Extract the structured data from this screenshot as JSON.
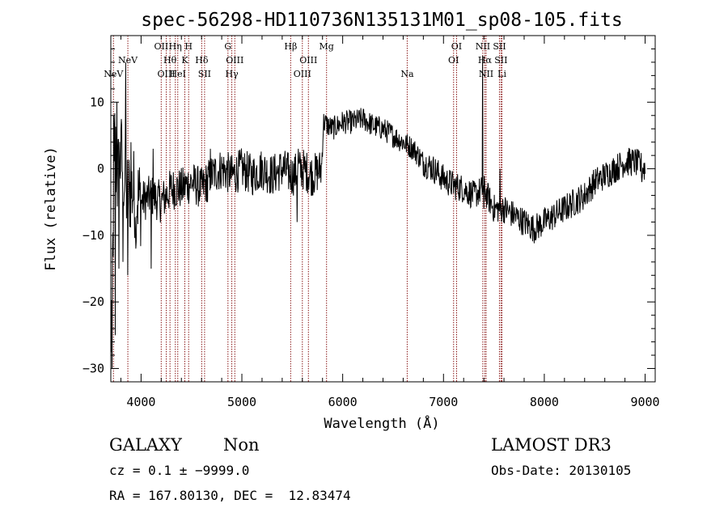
{
  "chart_data": {
    "type": "line",
    "title": "spec-56298-HD110736N135131M01_sp08-105.fits",
    "xlabel": "Wavelength (Å)",
    "ylabel": "Flux (relative)",
    "xlim": [
      3700,
      9100
    ],
    "ylim": [
      -32,
      20
    ],
    "xticks": [
      4000,
      5000,
      6000,
      7000,
      8000,
      9000
    ],
    "yticks": [
      10,
      0,
      -10,
      -20,
      -30
    ],
    "grid": false,
    "line_color": "#000000",
    "marker_color": "#8b1a1a",
    "spectrum_anchors": [
      {
        "x": 3700,
        "y": -28
      },
      {
        "x": 3720,
        "y": -12
      },
      {
        "x": 3740,
        "y": 5
      },
      {
        "x": 3760,
        "y": -2
      },
      {
        "x": 3800,
        "y": 2
      },
      {
        "x": 3860,
        "y": -4
      },
      {
        "x": 3900,
        "y": -3
      },
      {
        "x": 4000,
        "y": -5
      },
      {
        "x": 4100,
        "y": -4
      },
      {
        "x": 4200,
        "y": -5
      },
      {
        "x": 4300,
        "y": -3
      },
      {
        "x": 4400,
        "y": -3
      },
      {
        "x": 4500,
        "y": -2
      },
      {
        "x": 4600,
        "y": -3
      },
      {
        "x": 4700,
        "y": -1
      },
      {
        "x": 4800,
        "y": 0
      },
      {
        "x": 4900,
        "y": -1
      },
      {
        "x": 5000,
        "y": 0
      },
      {
        "x": 5100,
        "y": -1
      },
      {
        "x": 5200,
        "y": 0
      },
      {
        "x": 5300,
        "y": -1
      },
      {
        "x": 5400,
        "y": 0
      },
      {
        "x": 5500,
        "y": -1
      },
      {
        "x": 5600,
        "y": 0
      },
      {
        "x": 5700,
        "y": -1
      },
      {
        "x": 5790,
        "y": 0
      },
      {
        "x": 5810,
        "y": 7
      },
      {
        "x": 5900,
        "y": 6
      },
      {
        "x": 6000,
        "y": 7
      },
      {
        "x": 6100,
        "y": 7
      },
      {
        "x": 6200,
        "y": 7.5
      },
      {
        "x": 6300,
        "y": 6.5
      },
      {
        "x": 6400,
        "y": 6
      },
      {
        "x": 6500,
        "y": 5
      },
      {
        "x": 6600,
        "y": 4
      },
      {
        "x": 6700,
        "y": 3
      },
      {
        "x": 6800,
        "y": 1
      },
      {
        "x": 6900,
        "y": 0
      },
      {
        "x": 7000,
        "y": -1.5
      },
      {
        "x": 7100,
        "y": -2.5
      },
      {
        "x": 7200,
        "y": -3
      },
      {
        "x": 7300,
        "y": -4
      },
      {
        "x": 7400,
        "y": -3
      },
      {
        "x": 7500,
        "y": -6
      },
      {
        "x": 7600,
        "y": -6
      },
      {
        "x": 7700,
        "y": -7
      },
      {
        "x": 7800,
        "y": -8
      },
      {
        "x": 7900,
        "y": -9
      },
      {
        "x": 8000,
        "y": -8
      },
      {
        "x": 8100,
        "y": -7
      },
      {
        "x": 8200,
        "y": -6
      },
      {
        "x": 8300,
        "y": -5
      },
      {
        "x": 8400,
        "y": -4
      },
      {
        "x": 8500,
        "y": -2
      },
      {
        "x": 8600,
        "y": -1
      },
      {
        "x": 8700,
        "y": 0
      },
      {
        "x": 8800,
        "y": 1
      },
      {
        "x": 8900,
        "y": 1
      },
      {
        "x": 9000,
        "y": 0
      }
    ],
    "spikes": [
      {
        "x": 3715,
        "y": -30
      },
      {
        "x": 3730,
        "y": 8
      },
      {
        "x": 3745,
        "y": -25
      },
      {
        "x": 3760,
        "y": 10
      },
      {
        "x": 3780,
        "y": -15
      },
      {
        "x": 3800,
        "y": 6
      },
      {
        "x": 3820,
        "y": -14
      },
      {
        "x": 3850,
        "y": 16
      },
      {
        "x": 3870,
        "y": -16
      },
      {
        "x": 3900,
        "y": 4
      },
      {
        "x": 3950,
        "y": -12
      },
      {
        "x": 4100,
        "y": -15
      },
      {
        "x": 4120,
        "y": 3
      },
      {
        "x": 4660,
        "y": -5
      },
      {
        "x": 4690,
        "y": 3
      },
      {
        "x": 5550,
        "y": -8
      },
      {
        "x": 5560,
        "y": 3
      },
      {
        "x": 6630,
        "y": 5
      },
      {
        "x": 7390,
        "y": 17
      },
      {
        "x": 7400,
        "y": -6
      },
      {
        "x": 7560,
        "y": 0
      },
      {
        "x": 7570,
        "y": -7
      },
      {
        "x": 8850,
        "y": 3
      },
      {
        "x": 8970,
        "y": -2
      }
    ],
    "line_markers": [
      {
        "x": 3726,
        "label": "NeV",
        "row": 3
      },
      {
        "x": 3869,
        "label": "NeV",
        "row": 1
      },
      {
        "x": 4200,
        "label": "OII",
        "row": 0
      },
      {
        "x": 4250,
        "label": "OIII",
        "row": 3
      },
      {
        "x": 4287,
        "label": "Hθ",
        "row": 1
      },
      {
        "x": 4340,
        "label": "Hη",
        "row": 0
      },
      {
        "x": 4364,
        "label": "HeI",
        "row": 3
      },
      {
        "x": 4434,
        "label": "K",
        "row": 1
      },
      {
        "x": 4472,
        "label": "H",
        "row": 0
      },
      {
        "x": 4602,
        "label": "Hδ",
        "row": 1
      },
      {
        "x": 4630,
        "label": "SII",
        "row": 3
      },
      {
        "x": 4862,
        "label": "G",
        "row": 0
      },
      {
        "x": 4900,
        "label": "Hγ",
        "row": 3
      },
      {
        "x": 4930,
        "label": "OIII",
        "row": 1
      },
      {
        "x": 5484,
        "label": "Hβ",
        "row": 0
      },
      {
        "x": 5600,
        "label": "OIII",
        "row": 3
      },
      {
        "x": 5660,
        "label": "OIII",
        "row": 1
      },
      {
        "x": 5840,
        "label": "Mg",
        "row": 0
      },
      {
        "x": 6640,
        "label": "Na",
        "row": 3
      },
      {
        "x": 7100,
        "label": "OI",
        "row": 1
      },
      {
        "x": 7130,
        "label": "OI",
        "row": 0
      },
      {
        "x": 7390,
        "label": "NII",
        "row": 0
      },
      {
        "x": 7410,
        "label": "Hα",
        "row": 1
      },
      {
        "x": 7423,
        "label": "NII",
        "row": 3
      },
      {
        "x": 7555,
        "label": "SII",
        "row": 0
      },
      {
        "x": 7570,
        "label": "SII",
        "row": 1
      },
      {
        "x": 7580,
        "label": "Li",
        "row": 3
      }
    ]
  },
  "footer": {
    "class_label": "GALAXY",
    "subclass_label": "Non",
    "redshift": "cz = 0.1 ± −9999.0",
    "coords": "RA = 167.80130, DEC =  12.83474",
    "survey": "LAMOST DR3",
    "obs_date": "Obs-Date: 20130105"
  }
}
